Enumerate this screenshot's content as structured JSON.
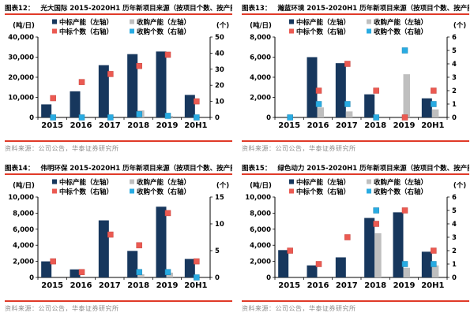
{
  "colors": {
    "navy": "#17375D",
    "gray": "#BFBFBF",
    "red": "#EB5A52",
    "blue": "#29ABE2",
    "navy_border": "#12294A",
    "gray_border": "#ACACAC",
    "red_border": "#C8453F",
    "blue_border": "#1D87B5",
    "accent_line": "#E03A28",
    "source_text": "#8C8C8C"
  },
  "chart_data": [
    {
      "figure_label": "图表12：",
      "title": "光大国际 2015-2020H1 历年新项目来源（按项目个数、按产能）",
      "source": "资料来源：公司公告，华泰证券研究所",
      "type": "bar",
      "legend_position": "top",
      "categories": [
        "2015",
        "2016",
        "2017",
        "2018",
        "2019",
        "20H1"
      ],
      "left_axis": {
        "unit": "(吨/日)",
        "max": 40000,
        "ticks": [
          "0",
          "10,000",
          "20,000",
          "30,000",
          "40,000"
        ]
      },
      "right_axis": {
        "unit": "(个)",
        "max": 50,
        "ticks": [
          "0",
          "10",
          "20",
          "30",
          "40",
          "50"
        ]
      },
      "series": [
        {
          "name": "中标产能（左轴）",
          "type": "bar",
          "axis": "left",
          "color": "navy",
          "values": [
            6500,
            13000,
            26000,
            31500,
            32800,
            11200
          ]
        },
        {
          "name": "收购产能（左轴）",
          "type": "bar",
          "axis": "left",
          "color": "gray",
          "values": [
            0,
            0,
            0,
            3500,
            800,
            0
          ]
        },
        {
          "name": "中标个数（右轴）",
          "type": "point",
          "axis": "right",
          "color": "red",
          "values": [
            12,
            22,
            27,
            32,
            39,
            10
          ]
        },
        {
          "name": "收购个数（右轴）",
          "type": "point",
          "axis": "right",
          "color": "blue",
          "values": [
            0,
            0,
            0,
            2,
            1,
            0
          ]
        }
      ]
    },
    {
      "figure_label": "图表13：",
      "title": "瀚蓝环境 2015-2020H1 历年新项目来源（按项目个数、按产能）",
      "source": "资料来源：公司公告，华泰证券研究所",
      "type": "bar",
      "legend_position": "top",
      "categories": [
        "2015",
        "2016",
        "2017",
        "2018",
        "2019",
        "20H1"
      ],
      "left_axis": {
        "unit": "(吨/日)",
        "max": 8000,
        "ticks": [
          "0",
          "2,000",
          "4,000",
          "6,000",
          "8,000"
        ]
      },
      "right_axis": {
        "unit": "(个)",
        "max": 6,
        "ticks": [
          "0",
          "1",
          "2",
          "3",
          "4",
          "5",
          "6"
        ]
      },
      "series": [
        {
          "name": "中标产能（左轴）",
          "type": "bar",
          "axis": "left",
          "color": "navy",
          "values": [
            0,
            6000,
            5400,
            2300,
            0,
            1900
          ]
        },
        {
          "name": "收购产能（左轴）",
          "type": "bar",
          "axis": "left",
          "color": "gray",
          "values": [
            0,
            1000,
            600,
            0,
            4300,
            800
          ]
        },
        {
          "name": "中标个数（右轴）",
          "type": "point",
          "axis": "right",
          "color": "red",
          "values": [
            null,
            2,
            4,
            2,
            0,
            2
          ]
        },
        {
          "name": "收购个数（右轴）",
          "type": "point",
          "axis": "right",
          "color": "blue",
          "values": [
            0,
            1,
            1,
            0,
            5,
            1
          ]
        }
      ]
    },
    {
      "figure_label": "图表14：",
      "title": "伟明环保 2015-2020H1 历年新项目来源（按项目个数、按产能）",
      "source": "资料来源：公司公告，华泰证券研究所",
      "type": "bar",
      "legend_position": "top",
      "categories": [
        "2015",
        "2016",
        "2017",
        "2018",
        "2019",
        "20H1"
      ],
      "left_axis": {
        "unit": "(吨/日)",
        "max": 10000,
        "ticks": [
          "0",
          "2,000",
          "4,000",
          "6,000",
          "8,000",
          "10,000"
        ]
      },
      "right_axis": {
        "unit": "(个)",
        "max": 15,
        "ticks": [
          "0",
          "5",
          "10",
          "15"
        ]
      },
      "series": [
        {
          "name": "中标产能（左轴）",
          "type": "bar",
          "axis": "left",
          "color": "navy",
          "values": [
            2000,
            1000,
            7100,
            3300,
            8800,
            2300
          ]
        },
        {
          "name": "收购产能（左轴）",
          "type": "bar",
          "axis": "left",
          "color": "gray",
          "values": [
            0,
            0,
            0,
            400,
            600,
            0
          ]
        },
        {
          "name": "中标个数（右轴）",
          "type": "point",
          "axis": "right",
          "color": "red",
          "values": [
            3,
            1,
            8,
            6,
            12,
            3
          ]
        },
        {
          "name": "收购个数（右轴）",
          "type": "point",
          "axis": "right",
          "color": "blue",
          "values": [
            null,
            null,
            null,
            1,
            1,
            0
          ]
        }
      ]
    },
    {
      "figure_label": "图表15：",
      "title": "绿色动力 2015-2020H1 历年新项目来源（按项目个数、按产能）",
      "source": "资料来源：公司公告，华泰证券研究所",
      "type": "bar",
      "legend_position": "top",
      "categories": [
        "2015",
        "2016",
        "2017",
        "2018",
        "2019",
        "20H1"
      ],
      "left_axis": {
        "unit": "(吨/日)",
        "max": 10000,
        "ticks": [
          "0",
          "2,000",
          "4,000",
          "6,000",
          "8,000",
          "10,000"
        ]
      },
      "right_axis": {
        "unit": "(个)",
        "max": 6,
        "ticks": [
          "0",
          "1",
          "2",
          "3",
          "4",
          "5",
          "6"
        ]
      },
      "series": [
        {
          "name": "中标产能（左轴）",
          "type": "bar",
          "axis": "left",
          "color": "navy",
          "values": [
            3400,
            1500,
            2500,
            7400,
            8100,
            3200
          ]
        },
        {
          "name": "收购产能（左轴）",
          "type": "bar",
          "axis": "left",
          "color": "gray",
          "values": [
            0,
            0,
            0,
            5500,
            1200,
            1500
          ]
        },
        {
          "name": "中标个数（右轴）",
          "type": "point",
          "axis": "right",
          "color": "red",
          "values": [
            2,
            1,
            3,
            4,
            5,
            2
          ]
        },
        {
          "name": "收购个数（右轴）",
          "type": "point",
          "axis": "right",
          "color": "blue",
          "values": [
            null,
            null,
            null,
            5,
            1,
            1
          ]
        }
      ]
    }
  ]
}
